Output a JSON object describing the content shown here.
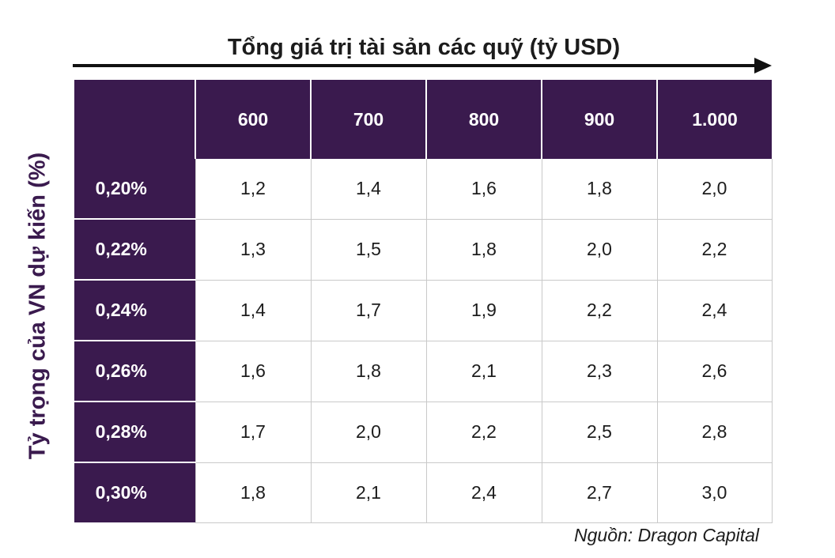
{
  "chart_data": {
    "type": "table",
    "title": "Tổng giá trị tài sản các quỹ (tỷ USD)",
    "ylabel": "Tỷ trọng của VN dự kiến (%)",
    "columns": [
      "600",
      "700",
      "800",
      "900",
      "1.000"
    ],
    "rows": [
      {
        "label": "0,20%",
        "values": [
          "1,2",
          "1,4",
          "1,6",
          "1,8",
          "2,0"
        ]
      },
      {
        "label": "0,22%",
        "values": [
          "1,3",
          "1,5",
          "1,8",
          "2,0",
          "2,2"
        ]
      },
      {
        "label": "0,24%",
        "values": [
          "1,4",
          "1,7",
          "1,9",
          "2,2",
          "2,4"
        ]
      },
      {
        "label": "0,26%",
        "values": [
          "1,6",
          "1,8",
          "2,1",
          "2,3",
          "2,6"
        ]
      },
      {
        "label": "0,28%",
        "values": [
          "1,7",
          "2,0",
          "2,2",
          "2,5",
          "2,8"
        ]
      },
      {
        "label": "0,30%",
        "values": [
          "1,8",
          "2,1",
          "2,4",
          "2,7",
          "3,0"
        ]
      }
    ],
    "source": "Nguồn: Dragon Capital"
  },
  "colors": {
    "header_fill": "#3a1a4e",
    "header_text": "#ffffff",
    "grid_line": "#c9c9c9",
    "arrow": "#111111"
  }
}
